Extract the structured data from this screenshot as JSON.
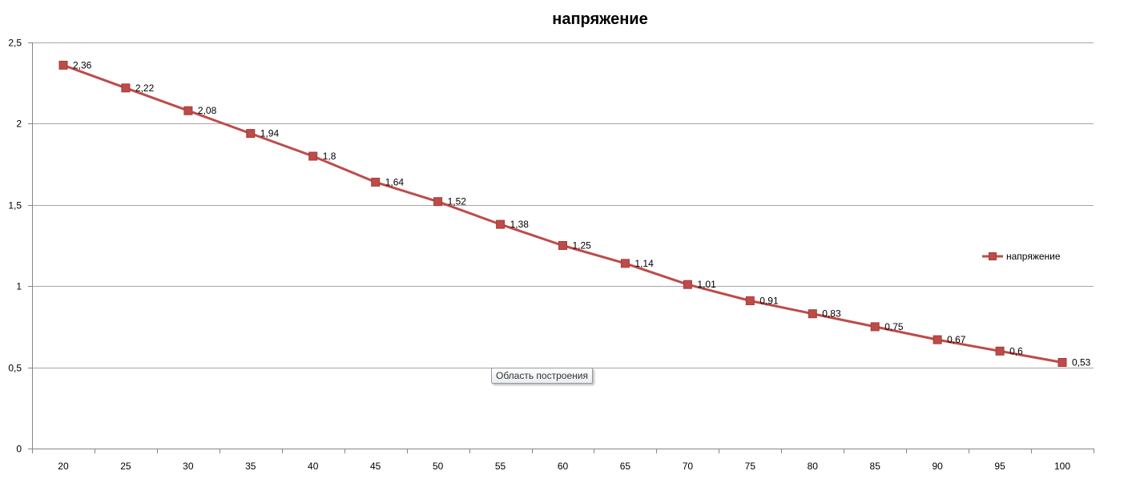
{
  "chart_data": {
    "type": "line",
    "title": "напряжение",
    "xlabel": "",
    "ylabel": "",
    "categories": [
      "20",
      "25",
      "30",
      "35",
      "40",
      "45",
      "50",
      "55",
      "60",
      "65",
      "70",
      "75",
      "80",
      "85",
      "90",
      "95",
      "100"
    ],
    "series": [
      {
        "name": "напряжение",
        "values": [
          2.36,
          2.22,
          2.08,
          1.94,
          1.8,
          1.64,
          1.52,
          1.38,
          1.25,
          1.14,
          1.01,
          0.91,
          0.83,
          0.75,
          0.67,
          0.6,
          0.53
        ],
        "labels": [
          "2,36",
          "2,22",
          "2,08",
          "1,94",
          "1,8",
          "1,64",
          "1,52",
          "1,38",
          "1,25",
          "1,14",
          "1,01",
          "0,91",
          "0,83",
          "0,75",
          "0,67",
          "0,6",
          "0,53"
        ],
        "color": "#be4b48",
        "marker": "square"
      }
    ],
    "ylim": [
      0,
      2.5
    ],
    "yticks": [
      0,
      0.5,
      1,
      1.5,
      2,
      2.5
    ],
    "ytick_labels": [
      "0",
      "0,5",
      "1",
      "1,5",
      "2",
      "2,5"
    ],
    "grid": "horizontal",
    "legend_position": "right"
  },
  "tooltip": {
    "text": "Область построения"
  },
  "colors": {
    "gridline": "#a6a6a6",
    "axis": "#868686",
    "series": "#be4b48"
  }
}
